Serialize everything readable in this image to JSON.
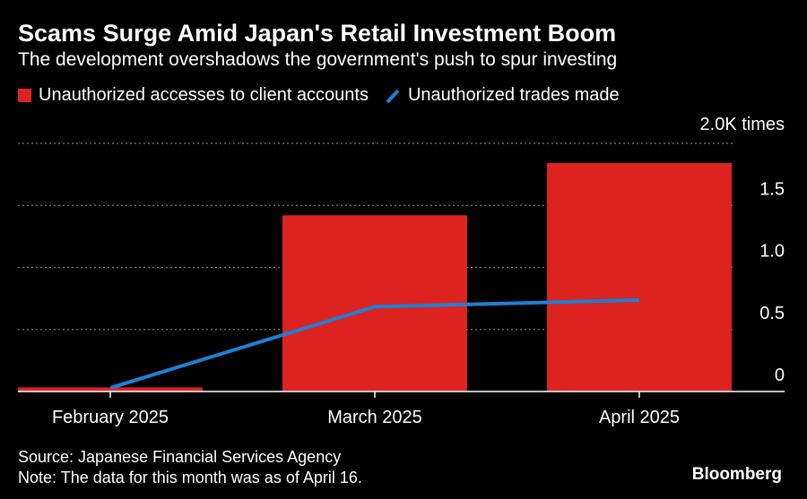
{
  "header": {
    "title": "Scams Surge Amid Japan's Retail Investment Boom",
    "subtitle": "The development overshadows the government's push to spur investing"
  },
  "legend": {
    "bar_label": "Unauthorized accesses to client accounts",
    "line_label": "Unauthorized trades made"
  },
  "footer": {
    "source": "Source: Japanese Financial Services Agency",
    "note": "Note: The data for this month was as of April 16.",
    "brand": "Bloomberg"
  },
  "colors": {
    "bar": "#dd2320",
    "line": "#1f7fd4",
    "grid": "#7a7a7a",
    "axis": "#ffffff",
    "text": "#ffffff",
    "background": "#000000"
  },
  "chart_data": {
    "type": "bar",
    "categories": [
      "February 2025",
      "March 2025",
      "April 2025"
    ],
    "series": [
      {
        "name": "Unauthorized accesses to client accounts",
        "type": "bar",
        "values": [
          33,
          1420,
          1841
        ]
      },
      {
        "name": "Unauthorized trades made",
        "type": "line",
        "values": [
          29,
          683,
          737
        ]
      }
    ],
    "ylim": [
      0,
      2000
    ],
    "yticks": [
      0,
      500,
      1000,
      1500,
      2000
    ],
    "ytick_labels": [
      "0",
      "0.5",
      "1.0",
      "1.5",
      "2.0K times"
    ],
    "grid": true,
    "legend_position": "top-left"
  }
}
